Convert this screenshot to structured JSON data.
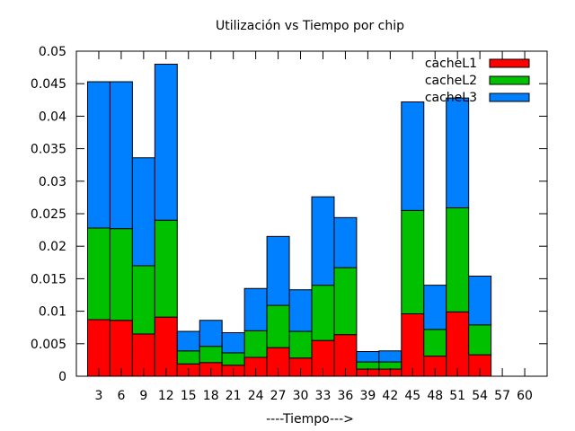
{
  "chart_data": {
    "type": "bar",
    "stacked": true,
    "title": "Utilización vs Tiempo por chip",
    "xlabel": "----Tiempo--->",
    "ylabel": "",
    "ylim": [
      0,
      0.05
    ],
    "yticks": [
      "0",
      "0.005",
      "0.01",
      "0.015",
      "0.02",
      "0.025",
      "0.03",
      "0.035",
      "0.04",
      "0.045",
      "0.05"
    ],
    "categories": [
      "3",
      "6",
      "9",
      "12",
      "15",
      "18",
      "21",
      "24",
      "27",
      "30",
      "33",
      "36",
      "39",
      "42",
      "45",
      "48",
      "51",
      "54",
      "57",
      "60"
    ],
    "grid": false,
    "legend_position": "top-right",
    "series": [
      {
        "name": "cacheL1",
        "color": "#ff0000",
        "values": [
          0.0087,
          0.0086,
          0.0065,
          0.0091,
          0.0019,
          0.0021,
          0.0017,
          0.0029,
          0.0044,
          0.0028,
          0.0055,
          0.0064,
          0.0011,
          0.0011,
          0.0096,
          0.0031,
          0.0099,
          0.0033,
          0,
          0
        ]
      },
      {
        "name": "cacheL2",
        "color": "#00c000",
        "values": [
          0.0141,
          0.0141,
          0.0105,
          0.0149,
          0.002,
          0.0025,
          0.0019,
          0.0041,
          0.0065,
          0.0041,
          0.0085,
          0.0103,
          0.0011,
          0.0011,
          0.0159,
          0.0041,
          0.016,
          0.0046,
          0,
          0
        ]
      },
      {
        "name": "cacheL3",
        "color": "#0080ff",
        "values": [
          0.0225,
          0.0226,
          0.0166,
          0.024,
          0.003,
          0.004,
          0.0031,
          0.0065,
          0.0106,
          0.0064,
          0.0136,
          0.0077,
          0.0016,
          0.0017,
          0.0167,
          0.0068,
          0.0169,
          0.0075,
          0,
          0
        ]
      }
    ]
  }
}
